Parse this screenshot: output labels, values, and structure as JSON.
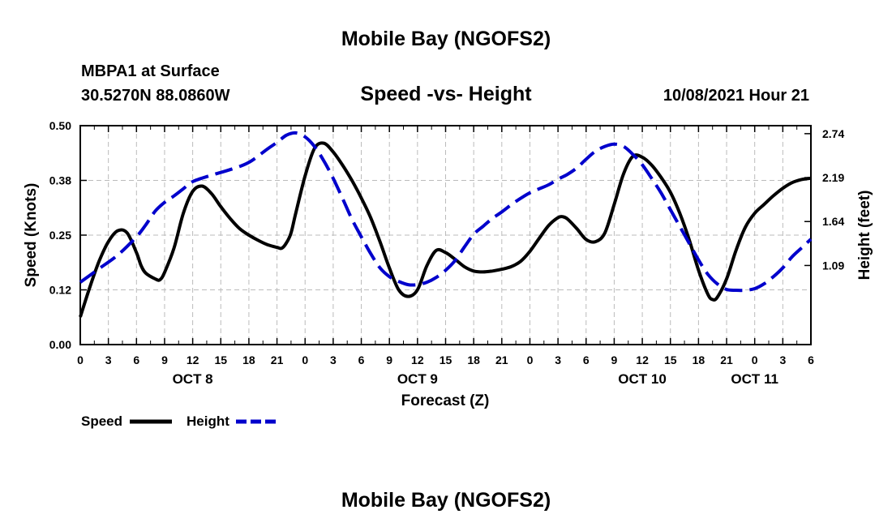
{
  "header": {
    "title": "Mobile Bay (NGOFS2)",
    "station": "MBPA1 at Surface",
    "coords": "30.5270N  88.0860W",
    "chart_title": "Speed -vs- Height",
    "run": "10/08/2021 Hour 21"
  },
  "footer": {
    "title": "Mobile Bay (NGOFS2)"
  },
  "legend": {
    "speed_label": "Speed",
    "height_label": "Height"
  },
  "colors": {
    "speed": "#000000",
    "height": "#0000cc",
    "grid": "#bbbbbb"
  },
  "chart_data": {
    "type": "line",
    "xlabel": "Forecast (Z)",
    "ylabel": "Speed (Knots)",
    "y2label": "Height (feet)",
    "x_unit": "hours from 00Z Oct 8",
    "xlim": [
      0,
      78
    ],
    "ylim": [
      0,
      0.5
    ],
    "y2lim": [
      0.1,
      2.84
    ],
    "grid": true,
    "legend_position": "bottom-left",
    "x_tick_values": [
      0,
      3,
      6,
      9,
      12,
      15,
      18,
      21,
      24,
      27,
      30,
      33,
      36,
      39,
      42,
      45,
      48,
      51,
      54,
      57,
      60,
      63,
      66,
      69,
      72,
      75,
      78
    ],
    "x_tick_labels": [
      "0",
      "3",
      "6",
      "9",
      "12",
      "15",
      "18",
      "21",
      "0",
      "3",
      "6",
      "9",
      "12",
      "15",
      "18",
      "21",
      "0",
      "3",
      "6",
      "9",
      "12",
      "15",
      "18",
      "21",
      "0",
      "3",
      "6"
    ],
    "date_labels": [
      {
        "x": 12,
        "label": "OCT 8"
      },
      {
        "x": 36,
        "label": "OCT 9"
      },
      {
        "x": 60,
        "label": "OCT 10"
      },
      {
        "x": 72,
        "label": "OCT 11"
      }
    ],
    "y_ticks": [
      "0.00",
      "0.12",
      "0.25",
      "0.38",
      "0.50"
    ],
    "y_tick_values": [
      0,
      0.125,
      0.25,
      0.375,
      0.5
    ],
    "y2_ticks": [
      "1.09",
      "1.64",
      "2.19",
      "2.74"
    ],
    "y2_tick_values": [
      1.09,
      1.64,
      2.19,
      2.74
    ],
    "series": [
      {
        "name": "Speed",
        "axis": "left",
        "style": "solid",
        "points": [
          [
            0,
            0.063
          ],
          [
            1,
            0.13
          ],
          [
            2,
            0.19
          ],
          [
            3,
            0.235
          ],
          [
            4,
            0.26
          ],
          [
            5,
            0.255
          ],
          [
            6,
            0.21
          ],
          [
            6.5,
            0.18
          ],
          [
            7,
            0.163
          ],
          [
            8,
            0.15
          ],
          [
            8.5,
            0.148
          ],
          [
            9,
            0.165
          ],
          [
            10,
            0.22
          ],
          [
            11,
            0.3
          ],
          [
            12,
            0.35
          ],
          [
            13,
            0.362
          ],
          [
            14,
            0.345
          ],
          [
            15,
            0.315
          ],
          [
            16,
            0.288
          ],
          [
            17,
            0.265
          ],
          [
            18,
            0.25
          ],
          [
            19,
            0.238
          ],
          [
            20,
            0.228
          ],
          [
            21,
            0.222
          ],
          [
            21.5,
            0.22
          ],
          [
            22,
            0.232
          ],
          [
            22.5,
            0.255
          ],
          [
            23,
            0.3
          ],
          [
            24,
            0.385
          ],
          [
            25,
            0.448
          ],
          [
            26,
            0.46
          ],
          [
            27,
            0.44
          ],
          [
            28,
            0.41
          ],
          [
            29,
            0.375
          ],
          [
            30,
            0.335
          ],
          [
            31,
            0.29
          ],
          [
            32,
            0.235
          ],
          [
            33,
            0.175
          ],
          [
            34,
            0.125
          ],
          [
            35,
            0.11
          ],
          [
            36,
            0.125
          ],
          [
            37,
            0.18
          ],
          [
            38,
            0.215
          ],
          [
            39,
            0.21
          ],
          [
            40,
            0.195
          ],
          [
            41,
            0.178
          ],
          [
            42,
            0.168
          ],
          [
            43,
            0.166
          ],
          [
            44,
            0.168
          ],
          [
            45,
            0.172
          ],
          [
            46,
            0.178
          ],
          [
            47,
            0.19
          ],
          [
            48,
            0.213
          ],
          [
            49,
            0.243
          ],
          [
            50,
            0.272
          ],
          [
            51,
            0.29
          ],
          [
            51.5,
            0.292
          ],
          [
            52,
            0.287
          ],
          [
            53,
            0.265
          ],
          [
            54,
            0.24
          ],
          [
            55,
            0.235
          ],
          [
            56,
            0.255
          ],
          [
            57,
            0.32
          ],
          [
            58,
            0.39
          ],
          [
            59,
            0.43
          ],
          [
            60,
            0.428
          ],
          [
            61,
            0.41
          ],
          [
            62,
            0.382
          ],
          [
            63,
            0.348
          ],
          [
            64,
            0.3
          ],
          [
            65,
            0.24
          ],
          [
            66,
            0.17
          ],
          [
            67,
            0.115
          ],
          [
            67.5,
            0.103
          ],
          [
            68,
            0.108
          ],
          [
            69,
            0.15
          ],
          [
            70,
            0.215
          ],
          [
            71,
            0.268
          ],
          [
            72,
            0.3
          ],
          [
            73,
            0.32
          ],
          [
            74,
            0.34
          ],
          [
            75,
            0.357
          ],
          [
            76,
            0.37
          ],
          [
            77,
            0.377
          ],
          [
            78,
            0.38
          ]
        ]
      },
      {
        "name": "Height",
        "axis": "right",
        "style": "dashed",
        "points": [
          [
            0,
            0.88
          ],
          [
            2,
            1.05
          ],
          [
            4,
            1.22
          ],
          [
            6,
            1.45
          ],
          [
            7,
            1.6
          ],
          [
            8,
            1.77
          ],
          [
            9,
            1.88
          ],
          [
            10,
            1.96
          ],
          [
            11,
            2.05
          ],
          [
            12,
            2.14
          ],
          [
            14,
            2.22
          ],
          [
            16,
            2.29
          ],
          [
            18,
            2.38
          ],
          [
            20,
            2.55
          ],
          [
            21,
            2.63
          ],
          [
            22,
            2.72
          ],
          [
            23,
            2.75
          ],
          [
            24,
            2.7
          ],
          [
            25,
            2.58
          ],
          [
            26,
            2.4
          ],
          [
            27,
            2.18
          ],
          [
            28,
            1.93
          ],
          [
            29,
            1.67
          ],
          [
            30,
            1.45
          ],
          [
            31,
            1.24
          ],
          [
            32,
            1.06
          ],
          [
            33,
            0.95
          ],
          [
            34,
            0.89
          ],
          [
            35,
            0.85
          ],
          [
            36,
            0.85
          ],
          [
            37,
            0.88
          ],
          [
            38,
            0.94
          ],
          [
            39,
            1.03
          ],
          [
            40,
            1.15
          ],
          [
            41,
            1.32
          ],
          [
            42,
            1.48
          ],
          [
            43,
            1.58
          ],
          [
            44,
            1.68
          ],
          [
            45,
            1.76
          ],
          [
            46,
            1.85
          ],
          [
            47,
            1.93
          ],
          [
            48,
            2.0
          ],
          [
            49,
            2.05
          ],
          [
            50,
            2.1
          ],
          [
            51,
            2.17
          ],
          [
            52,
            2.23
          ],
          [
            53,
            2.31
          ],
          [
            54,
            2.42
          ],
          [
            55,
            2.52
          ],
          [
            56,
            2.58
          ],
          [
            57,
            2.61
          ],
          [
            58,
            2.58
          ],
          [
            59,
            2.48
          ],
          [
            60,
            2.35
          ],
          [
            61,
            2.18
          ],
          [
            62,
            2.0
          ],
          [
            63,
            1.79
          ],
          [
            64,
            1.58
          ],
          [
            65,
            1.37
          ],
          [
            66,
            1.16
          ],
          [
            67,
            0.98
          ],
          [
            68,
            0.86
          ],
          [
            69,
            0.79
          ],
          [
            70,
            0.78
          ],
          [
            71,
            0.78
          ],
          [
            72,
            0.8
          ],
          [
            73,
            0.86
          ],
          [
            74,
            0.95
          ],
          [
            75,
            1.06
          ],
          [
            76,
            1.2
          ],
          [
            77,
            1.31
          ],
          [
            78,
            1.42
          ]
        ]
      }
    ]
  }
}
